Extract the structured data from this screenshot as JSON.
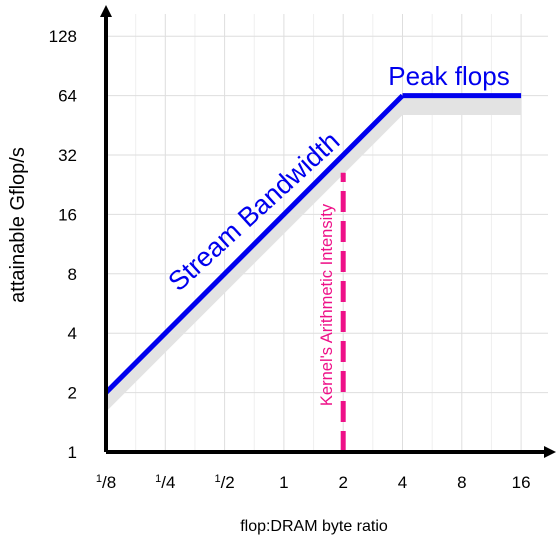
{
  "chart_data": {
    "type": "line",
    "xscale": "log2",
    "yscale": "log2",
    "xlabel": "flop:DRAM byte ratio",
    "ylabel": "attainable Gflop/s",
    "x_ticks": [
      {
        "value": 0.125,
        "label": "1/8",
        "num": "1",
        "den": "8",
        "fraction": true
      },
      {
        "value": 0.25,
        "label": "1/4",
        "num": "1",
        "den": "4",
        "fraction": true
      },
      {
        "value": 0.5,
        "label": "1/2",
        "num": "1",
        "den": "2",
        "fraction": true
      },
      {
        "value": 1,
        "label": "1",
        "fraction": false
      },
      {
        "value": 2,
        "label": "2",
        "fraction": false
      },
      {
        "value": 4,
        "label": "4",
        "fraction": false
      },
      {
        "value": 8,
        "label": "8",
        "fraction": false
      },
      {
        "value": 16,
        "label": "16",
        "fraction": false
      }
    ],
    "y_ticks": [
      {
        "value": 1,
        "label": "1"
      },
      {
        "value": 2,
        "label": "2"
      },
      {
        "value": 4,
        "label": "4"
      },
      {
        "value": 8,
        "label": "8"
      },
      {
        "value": 16,
        "label": "16"
      },
      {
        "value": 32,
        "label": "32"
      },
      {
        "value": 64,
        "label": "64"
      },
      {
        "value": 128,
        "label": "128"
      }
    ],
    "xlim": [
      0.125,
      16
    ],
    "ylim": [
      1,
      128
    ],
    "grid": true,
    "series": [
      {
        "name": "Stream Bandwidth",
        "color": "#0000ee",
        "points": [
          [
            0.125,
            2
          ],
          [
            4,
            64
          ]
        ]
      },
      {
        "name": "Peak flops",
        "color": "#0000ee",
        "points": [
          [
            4,
            64
          ],
          [
            16,
            64
          ]
        ]
      }
    ],
    "shadow": {
      "color": "#e3e3e3",
      "points": [
        [
          0.125,
          1.6
        ],
        [
          4,
          51
        ],
        [
          16,
          51
        ]
      ]
    },
    "marker": {
      "label": "Kernel's Arithmetic Intensity",
      "color": "#ee1188",
      "x": 2,
      "y_range": [
        1,
        26
      ]
    },
    "annotations": [
      {
        "text": "Stream Bandwidth",
        "color": "#0000ee"
      },
      {
        "text": "Peak flops",
        "color": "#0000ee"
      }
    ]
  }
}
